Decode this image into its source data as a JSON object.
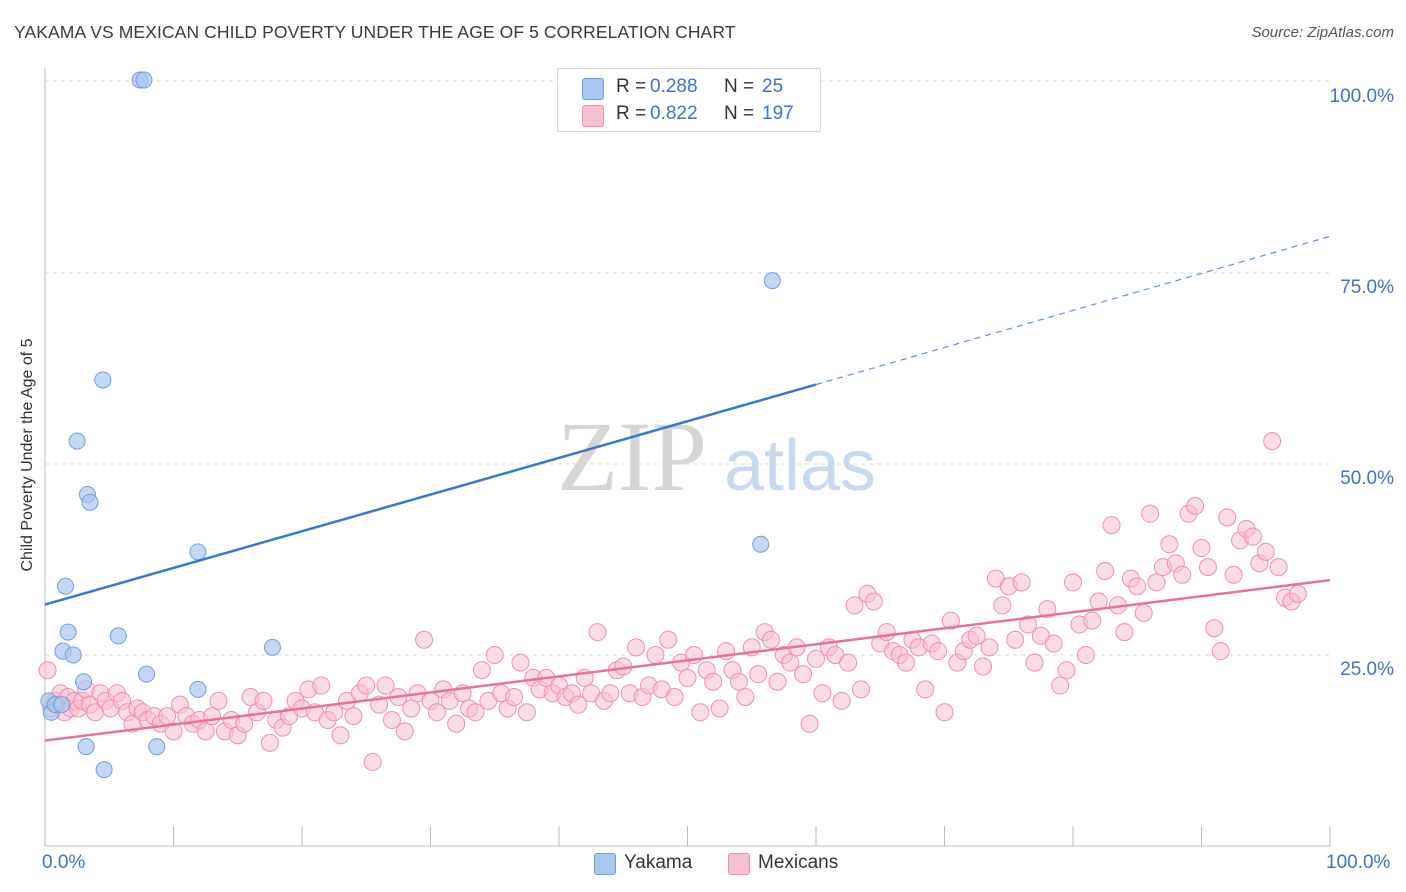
{
  "title": "YAKAMA VS MEXICAN CHILD POVERTY UNDER THE AGE OF 5 CORRELATION CHART",
  "source": "Source: ZipAtlas.com",
  "watermark": {
    "zip": "ZIP",
    "atlas": "atlas"
  },
  "colors": {
    "yakama_fill": "#a9c8f0",
    "yakama_stroke": "#6f9fdc",
    "yakama_line": "#3a78d0",
    "mexican_fill": "#f7bfd0",
    "mexican_stroke": "#ee8fae",
    "mexican_line": "#e8709a",
    "tick_text": "#3b74c5",
    "grid": "#d9d9d9"
  },
  "legend": {
    "rows": [
      {
        "r_label": "R =",
        "r_value": "0.288",
        "n_label": "N =",
        "n_value": "25"
      },
      {
        "r_label": "R =",
        "r_value": "0.822",
        "n_label": "N =",
        "n_value": "197"
      }
    ]
  },
  "bottom_legend": {
    "yakama": "Yakama",
    "mexicans": "Mexicans"
  },
  "chart_data": {
    "type": "scatter",
    "title": "YAKAMA VS MEXICAN CHILD POVERTY UNDER THE AGE OF 5 CORRELATION CHART",
    "xlabel": "",
    "ylabel": "Child Poverty Under the Age of 5",
    "xlim": [
      0,
      100
    ],
    "ylim": [
      0,
      100
    ],
    "x_tick_labels": [
      "0.0%",
      "100.0%"
    ],
    "y_tick_labels": [
      "25.0%",
      "50.0%",
      "75.0%",
      "100.0%"
    ],
    "y_ticks": [
      25,
      50,
      75,
      100
    ],
    "grid": true,
    "legend_position": "top-center",
    "series": [
      {
        "name": "Yakama",
        "points": [
          [
            0.3,
            19
          ],
          [
            0.5,
            17.5
          ],
          [
            0.8,
            18.5
          ],
          [
            1.3,
            18.5
          ],
          [
            1.4,
            25.5
          ],
          [
            1.6,
            34
          ],
          [
            1.8,
            28
          ],
          [
            2.2,
            25
          ],
          [
            2.5,
            53
          ],
          [
            3.0,
            21.5
          ],
          [
            3.2,
            13
          ],
          [
            3.3,
            46
          ],
          [
            3.5,
            45
          ],
          [
            4.5,
            61
          ],
          [
            4.6,
            10
          ],
          [
            5.7,
            27.5
          ],
          [
            7.4,
            100
          ],
          [
            7.7,
            100
          ],
          [
            7.9,
            22.5
          ],
          [
            8.7,
            13
          ],
          [
            11.9,
            38.5
          ],
          [
            11.9,
            20.5
          ],
          [
            17.7,
            26
          ],
          [
            55.7,
            39.5
          ],
          [
            56.6,
            74
          ]
        ],
        "trend": {
          "x0": 0,
          "y0": 31.6,
          "x1": 60,
          "y1": 60.4,
          "dashed_to_x": 100,
          "dashed_to_y": 79.8
        }
      },
      {
        "name": "Mexicans",
        "points": [
          [
            0.2,
            23
          ],
          [
            0.5,
            18
          ],
          [
            0.8,
            19
          ],
          [
            1.0,
            18.5
          ],
          [
            1.2,
            20
          ],
          [
            1.5,
            17.5
          ],
          [
            1.8,
            19.5
          ],
          [
            2.0,
            18
          ],
          [
            2.3,
            19
          ],
          [
            2.6,
            18
          ],
          [
            2.9,
            19
          ],
          [
            3.2,
            20.5
          ],
          [
            3.5,
            18.5
          ],
          [
            3.9,
            17.5
          ],
          [
            4.3,
            20
          ],
          [
            4.7,
            19
          ],
          [
            5.1,
            18
          ],
          [
            5.6,
            20
          ],
          [
            6.0,
            19
          ],
          [
            6.4,
            17.5
          ],
          [
            6.8,
            16
          ],
          [
            7.2,
            18
          ],
          [
            7.6,
            17.5
          ],
          [
            8.0,
            16.5
          ],
          [
            8.5,
            17
          ],
          [
            9.0,
            16
          ],
          [
            9.5,
            17
          ],
          [
            10.0,
            15
          ],
          [
            10.5,
            18.5
          ],
          [
            11.0,
            17
          ],
          [
            11.5,
            16
          ],
          [
            12.0,
            16.5
          ],
          [
            12.5,
            15
          ],
          [
            13.0,
            17
          ],
          [
            13.5,
            19
          ],
          [
            14.0,
            15
          ],
          [
            14.5,
            16.5
          ],
          [
            15.0,
            14.5
          ],
          [
            15.5,
            16
          ],
          [
            16.0,
            19.5
          ],
          [
            16.5,
            17.5
          ],
          [
            17.0,
            19
          ],
          [
            17.5,
            13.5
          ],
          [
            18.0,
            16.5
          ],
          [
            18.5,
            15.5
          ],
          [
            19.0,
            17
          ],
          [
            19.5,
            19
          ],
          [
            20.0,
            18
          ],
          [
            20.5,
            20.5
          ],
          [
            21.0,
            17.5
          ],
          [
            21.5,
            21
          ],
          [
            22.0,
            16.5
          ],
          [
            22.5,
            17.5
          ],
          [
            23.0,
            14.5
          ],
          [
            23.5,
            19
          ],
          [
            24.0,
            17
          ],
          [
            24.5,
            20
          ],
          [
            25.0,
            21
          ],
          [
            25.5,
            11
          ],
          [
            26.0,
            18.5
          ],
          [
            26.5,
            21
          ],
          [
            27.0,
            16.5
          ],
          [
            27.5,
            19.5
          ],
          [
            28.0,
            15
          ],
          [
            28.5,
            18
          ],
          [
            29.0,
            20
          ],
          [
            29.5,
            27
          ],
          [
            30.0,
            19
          ],
          [
            30.5,
            17.5
          ],
          [
            31.0,
            20.5
          ],
          [
            31.5,
            19
          ],
          [
            32.0,
            16
          ],
          [
            32.5,
            20
          ],
          [
            33.0,
            18
          ],
          [
            33.5,
            17.5
          ],
          [
            34.0,
            23
          ],
          [
            34.5,
            19
          ],
          [
            35.0,
            25
          ],
          [
            35.5,
            20
          ],
          [
            36.0,
            18
          ],
          [
            36.5,
            19.5
          ],
          [
            37.0,
            24
          ],
          [
            37.5,
            17.5
          ],
          [
            38.0,
            22
          ],
          [
            38.5,
            20.5
          ],
          [
            39.0,
            22
          ],
          [
            39.5,
            20
          ],
          [
            40.0,
            21
          ],
          [
            40.5,
            19.5
          ],
          [
            41.0,
            20
          ],
          [
            41.5,
            18.5
          ],
          [
            42.0,
            22
          ],
          [
            42.5,
            20
          ],
          [
            43.0,
            28
          ],
          [
            43.5,
            19
          ],
          [
            44.0,
            20
          ],
          [
            44.5,
            23
          ],
          [
            45.0,
            23.5
          ],
          [
            45.5,
            20
          ],
          [
            46.0,
            26
          ],
          [
            46.5,
            19.5
          ],
          [
            47.0,
            21
          ],
          [
            47.5,
            25
          ],
          [
            48.0,
            20.5
          ],
          [
            48.5,
            27
          ],
          [
            49.0,
            19.5
          ],
          [
            49.5,
            24
          ],
          [
            50.0,
            22
          ],
          [
            50.5,
            25
          ],
          [
            51.0,
            17.5
          ],
          [
            51.5,
            23
          ],
          [
            52.0,
            21.5
          ],
          [
            52.5,
            18
          ],
          [
            53.0,
            25.5
          ],
          [
            53.5,
            23
          ],
          [
            54.0,
            21.5
          ],
          [
            54.5,
            19.5
          ],
          [
            55.0,
            26
          ],
          [
            55.5,
            22.5
          ],
          [
            56.0,
            28
          ],
          [
            56.5,
            27
          ],
          [
            57.0,
            21.5
          ],
          [
            57.5,
            25
          ],
          [
            58.0,
            24
          ],
          [
            58.5,
            26
          ],
          [
            59.0,
            22.5
          ],
          [
            59.5,
            16
          ],
          [
            60.0,
            24.5
          ],
          [
            60.5,
            20
          ],
          [
            61.0,
            26
          ],
          [
            61.5,
            25
          ],
          [
            62.0,
            19
          ],
          [
            62.5,
            24
          ],
          [
            63.0,
            31.5
          ],
          [
            63.5,
            20.5
          ],
          [
            64.0,
            33
          ],
          [
            64.5,
            32
          ],
          [
            65.0,
            26.5
          ],
          [
            65.5,
            28
          ],
          [
            66.0,
            25.5
          ],
          [
            66.5,
            25
          ],
          [
            67.0,
            24
          ],
          [
            67.5,
            27
          ],
          [
            68.0,
            26
          ],
          [
            68.5,
            20.5
          ],
          [
            69.0,
            26.5
          ],
          [
            69.5,
            25.5
          ],
          [
            70.0,
            17.5
          ],
          [
            70.5,
            29.5
          ],
          [
            71.0,
            24
          ],
          [
            71.5,
            25.5
          ],
          [
            72.0,
            27
          ],
          [
            72.5,
            27.5
          ],
          [
            73.0,
            23.5
          ],
          [
            73.5,
            26
          ],
          [
            74.0,
            35
          ],
          [
            74.5,
            31.5
          ],
          [
            75.0,
            34
          ],
          [
            75.5,
            27
          ],
          [
            76.0,
            34.5
          ],
          [
            76.5,
            29
          ],
          [
            77.0,
            24
          ],
          [
            77.5,
            27.5
          ],
          [
            78.0,
            31
          ],
          [
            78.5,
            26.5
          ],
          [
            79.0,
            21
          ],
          [
            79.5,
            23
          ],
          [
            80.0,
            34.5
          ],
          [
            80.5,
            29
          ],
          [
            81.0,
            25
          ],
          [
            81.5,
            29.5
          ],
          [
            82.0,
            32
          ],
          [
            82.5,
            36
          ],
          [
            83.0,
            42
          ],
          [
            83.5,
            31.5
          ],
          [
            84.0,
            28
          ],
          [
            84.5,
            35
          ],
          [
            85.0,
            34
          ],
          [
            85.5,
            30.5
          ],
          [
            86.0,
            43.5
          ],
          [
            86.5,
            34.5
          ],
          [
            87.0,
            36.5
          ],
          [
            87.5,
            39.5
          ],
          [
            88.0,
            37
          ],
          [
            88.5,
            35.5
          ],
          [
            89.0,
            43.5
          ],
          [
            89.5,
            44.5
          ],
          [
            90.0,
            39
          ],
          [
            90.5,
            36.5
          ],
          [
            91.0,
            28.5
          ],
          [
            91.5,
            25.5
          ],
          [
            92.0,
            43
          ],
          [
            92.5,
            35.5
          ],
          [
            93.0,
            40
          ],
          [
            93.5,
            41.5
          ],
          [
            94.0,
            40.5
          ],
          [
            94.5,
            37
          ],
          [
            95.0,
            38.5
          ],
          [
            95.5,
            53
          ],
          [
            96.0,
            36.5
          ],
          [
            96.5,
            32.5
          ],
          [
            97.0,
            32
          ],
          [
            97.5,
            33
          ]
        ],
        "trend": {
          "x0": 0,
          "y0": 13.8,
          "x1": 100,
          "y1": 34.8
        }
      }
    ]
  }
}
